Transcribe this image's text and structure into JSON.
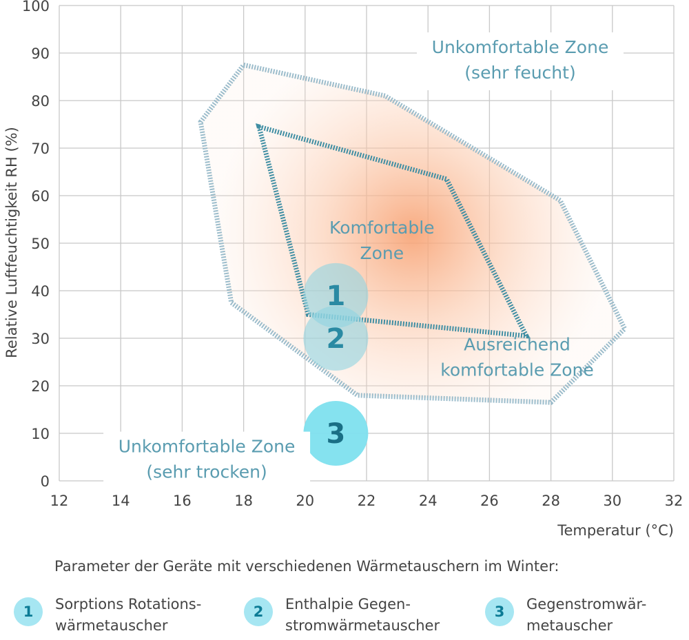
{
  "chart_data": {
    "type": "scatter",
    "xlabel": "Temperatur (°C)",
    "ylabel": "Relative Luftfeuchtigkeit RH (%)",
    "xlim": [
      12,
      32
    ],
    "ylim": [
      0,
      100
    ],
    "x_ticks": [
      12,
      14,
      16,
      18,
      20,
      22,
      24,
      26,
      28,
      30,
      32
    ],
    "y_ticks": [
      0,
      10,
      20,
      30,
      40,
      50,
      60,
      70,
      80,
      90,
      100
    ],
    "grid": true,
    "regions": [
      {
        "label_lines": [
          "Ausreichend",
          "komfortable Zone"
        ],
        "label_at": [
          26.9,
          27.5
        ],
        "color": "#9bbccb",
        "polygon": [
          [
            18.0,
            87.5
          ],
          [
            22.6,
            81
          ],
          [
            28.3,
            59
          ],
          [
            30.4,
            32
          ],
          [
            28.0,
            16.5
          ],
          [
            21.7,
            18
          ],
          [
            17.6,
            37.5
          ],
          [
            16.6,
            75.5
          ]
        ]
      },
      {
        "label_lines": [
          "Komfortable",
          "Zone"
        ],
        "label_at": [
          22.5,
          52
        ],
        "color": "#3f8ea3",
        "polygon": [
          [
            18.5,
            74.5
          ],
          [
            24.6,
            63.5
          ],
          [
            27.2,
            30.5
          ],
          [
            20.1,
            35
          ]
        ]
      }
    ],
    "annotations": [
      {
        "lines": [
          "Unkomfortable Zone",
          "(sehr feucht)"
        ],
        "at": [
          27.0,
          90
        ]
      },
      {
        "lines": [
          "Unkomfortable Zone",
          "(sehr trocken)"
        ],
        "at": [
          16.8,
          6
        ]
      }
    ],
    "points": [
      {
        "label": "1",
        "x": 21.0,
        "y": 39,
        "fill": "#8fd4e1",
        "opacity": 0.6,
        "text_color": "#2a8aa3"
      },
      {
        "label": "2",
        "x": 21.0,
        "y": 30,
        "fill": "#8fd4e1",
        "opacity": 0.6,
        "text_color": "#2a8aa3"
      },
      {
        "label": "3",
        "x": 21.0,
        "y": 10,
        "fill": "#7ee0ee",
        "opacity": 0.95,
        "text_color": "#1a6f85"
      }
    ],
    "comfort_center": [
      23.5,
      52
    ]
  },
  "legend": {
    "title": "Parameter der Geräte mit verschiedenen Wärmetauschern im Winter:",
    "items": [
      {
        "num": "1",
        "text": "Sorptions Rotations-\nwärmetauscher"
      },
      {
        "num": "2",
        "text": "Enthalpie Gegen-\nstromwärmetauscher"
      },
      {
        "num": "3",
        "text": "Gegenstromwär-\nmetauscher"
      }
    ]
  }
}
